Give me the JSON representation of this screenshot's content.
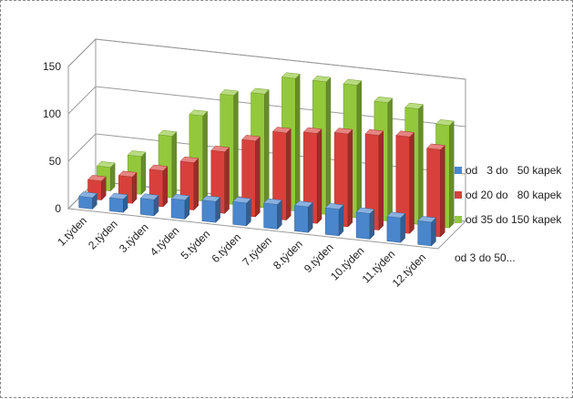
{
  "chart_data": {
    "type": "bar",
    "subtype": "3d-clustered-column",
    "title": "",
    "xlabel": "",
    "ylabel": "",
    "ylim": [
      0,
      150
    ],
    "yticks": [
      "0",
      "50",
      "100",
      "150"
    ],
    "categories": [
      "1.týden",
      "2.týden",
      "3.týden",
      "4.týden",
      "5.týden",
      "6.týden",
      "7.týden",
      "8.týden",
      "9.týden",
      "10.týden",
      "11.týden",
      "12.týden"
    ],
    "series": [
      {
        "name": "od   3 do   50 kapek",
        "color": "#4a86cc",
        "values": [
          12,
          14,
          17,
          20,
          22,
          24,
          26,
          27,
          28,
          27,
          26,
          25
        ]
      },
      {
        "name": "od 20 do   80 kapek",
        "color": "#d8413b",
        "values": [
          20,
          28,
          38,
          50,
          65,
          80,
          92,
          95,
          98,
          100,
          102,
          92
        ]
      },
      {
        "name": "od 35 do 150 kapek",
        "color": "#93c83c",
        "values": [
          25,
          40,
          65,
          90,
          115,
          120,
          140,
          140,
          140,
          125,
          122,
          108
        ]
      }
    ],
    "depth_labels": [
      "od   3 do   50..."
    ],
    "legend_position": "right",
    "grid": true
  }
}
